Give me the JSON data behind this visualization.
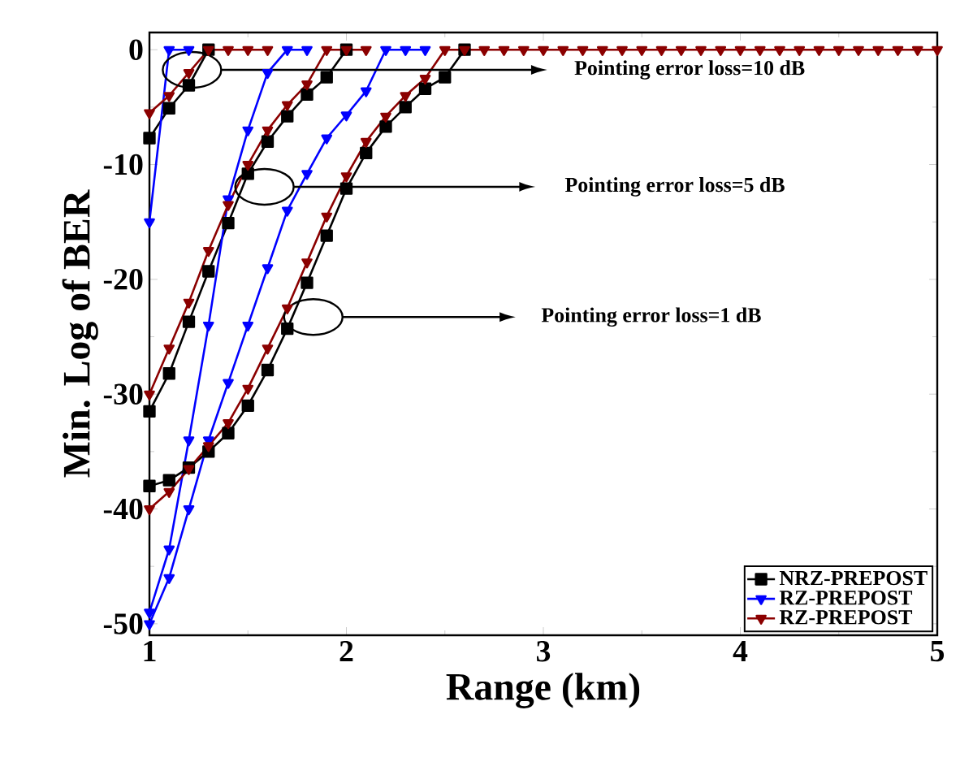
{
  "chart_data": {
    "type": "line",
    "xlabel": "Range (km)",
    "ylabel": "Min. Log of BER",
    "x": [
      1.0,
      1.1,
      1.2,
      1.3,
      1.4,
      1.5,
      1.6,
      1.7,
      1.8,
      1.9,
      2.0,
      2.1,
      2.2,
      2.3,
      2.4,
      2.5,
      2.6,
      2.7,
      2.8,
      2.9,
      3.0,
      3.1,
      3.2,
      3.3,
      3.4,
      3.5,
      3.6,
      3.7,
      3.8,
      3.9,
      4.0,
      4.1,
      4.2,
      4.3,
      4.4,
      4.5,
      4.6,
      4.7,
      4.8,
      4.9,
      5.0
    ],
    "xlim": [
      1,
      5
    ],
    "xticks": [
      1,
      2,
      3,
      4,
      5
    ],
    "ylim": [
      -51,
      1.5
    ],
    "yticks": [
      -50,
      -40,
      -30,
      -20,
      -10,
      0
    ],
    "legend": "bottom right",
    "line_style": "solid",
    "series": [
      {
        "name": "NRZ-PREPOST",
        "color": "#000000",
        "marker": "square",
        "values": [
          -7.7,
          -5.1,
          -3.1,
          0,
          null,
          null,
          null,
          null,
          null,
          null,
          null,
          null,
          null,
          null,
          null,
          null,
          null,
          null,
          null,
          null,
          null,
          null,
          null,
          null,
          null,
          null,
          null,
          null,
          null,
          null,
          null,
          null,
          null,
          null,
          null,
          null,
          null,
          null,
          null,
          null,
          null
        ]
      },
      {
        "name": "RZ-PREPOST",
        "color": "#0000ff",
        "marker": "triangle",
        "values": [
          -15,
          0,
          0,
          null,
          null,
          null,
          null,
          null,
          null,
          null,
          null,
          null,
          null,
          null,
          null,
          null,
          null,
          null,
          null,
          null,
          null,
          null,
          null,
          null,
          null,
          null,
          null,
          null,
          null,
          null,
          null,
          null,
          null,
          null,
          null,
          null,
          null,
          null,
          null,
          null,
          null
        ]
      },
      {
        "name": "RZ-PREPOST",
        "color": "#8b0000",
        "marker": "triangle",
        "values": [
          -5.5,
          -4,
          -2,
          0,
          0,
          0,
          0,
          null,
          null,
          null,
          null,
          null,
          null,
          null,
          null,
          null,
          null,
          null,
          null,
          null,
          null,
          null,
          null,
          null,
          null,
          null,
          null,
          null,
          null,
          null,
          null,
          null,
          null,
          null,
          null,
          null,
          null,
          null,
          null,
          null,
          null
        ]
      },
      {
        "color": "#000000",
        "marker": "square",
        "values": [
          -31.5,
          -28.2,
          -23.7,
          -19.3,
          -15.1,
          -10.8,
          -8,
          -5.8,
          -3.9,
          -2.4,
          0,
          null,
          null,
          null,
          null,
          null,
          null,
          null,
          null,
          null,
          null,
          null,
          null,
          null,
          null,
          null,
          null,
          null,
          null,
          null,
          null,
          null,
          null,
          null,
          null,
          null,
          null,
          null,
          null,
          null,
          null
        ]
      },
      {
        "color": "#0000ff",
        "marker": "triangle",
        "values": [
          -49,
          -43.5,
          -34,
          -24,
          -13,
          -7,
          -2,
          0,
          0,
          null,
          null,
          null,
          null,
          null,
          null,
          null,
          null,
          null,
          null,
          null,
          null,
          null,
          null,
          null,
          null,
          null,
          null,
          null,
          null,
          null,
          null,
          null,
          null,
          null,
          null,
          null,
          null,
          null,
          null,
          null,
          null
        ]
      },
      {
        "color": "#8b0000",
        "marker": "triangle",
        "values": [
          -30,
          -26,
          -22,
          -17.5,
          -13.5,
          -10,
          -7,
          -4.8,
          -3,
          0,
          0,
          0,
          null,
          null,
          null,
          null,
          null,
          null,
          null,
          null,
          null,
          null,
          null,
          null,
          null,
          null,
          null,
          null,
          null,
          null,
          null,
          null,
          null,
          null,
          null,
          null,
          null,
          null,
          null,
          null,
          null
        ]
      },
      {
        "color": "#000000",
        "marker": "square",
        "values": [
          -38,
          -37.5,
          -36.4,
          -35,
          -33.4,
          -31,
          -27.9,
          -24.3,
          -20.3,
          -16.2,
          -12.1,
          -9,
          -6.7,
          -5,
          -3.4,
          -2.4,
          0,
          null,
          null,
          null,
          null,
          null,
          null,
          null,
          null,
          null,
          null,
          null,
          null,
          null,
          null,
          null,
          null,
          null,
          null,
          null,
          null,
          null,
          null,
          null,
          null
        ]
      },
      {
        "color": "#0000ff",
        "marker": "triangle",
        "values": [
          -50,
          -46,
          -40,
          -34,
          -29,
          -24,
          -19,
          -14,
          -10.8,
          -7.7,
          -5.7,
          -3.6,
          0,
          0,
          0,
          null,
          null,
          null,
          null,
          null,
          null,
          null,
          null,
          null,
          null,
          null,
          null,
          null,
          null,
          null,
          null,
          null,
          null,
          null,
          null,
          null,
          null,
          null,
          null,
          null,
          null
        ]
      },
      {
        "color": "#8b0000",
        "marker": "triangle",
        "values": [
          -40,
          -38.5,
          -36.5,
          -34.5,
          -32.5,
          -29.5,
          -26,
          -22.5,
          -18.5,
          -14.5,
          -11,
          -8,
          -5.8,
          -4,
          -2.5,
          0,
          0,
          0,
          0,
          0,
          0,
          0,
          0,
          0,
          0,
          0,
          0,
          0,
          0,
          0,
          0,
          0,
          0,
          0,
          0,
          0,
          0,
          0,
          0,
          0,
          0
        ]
      }
    ],
    "annotations": [
      "Pointing error loss=10 dB",
      "Pointing error loss=5 dB",
      "Pointing error loss=1 dB"
    ]
  }
}
